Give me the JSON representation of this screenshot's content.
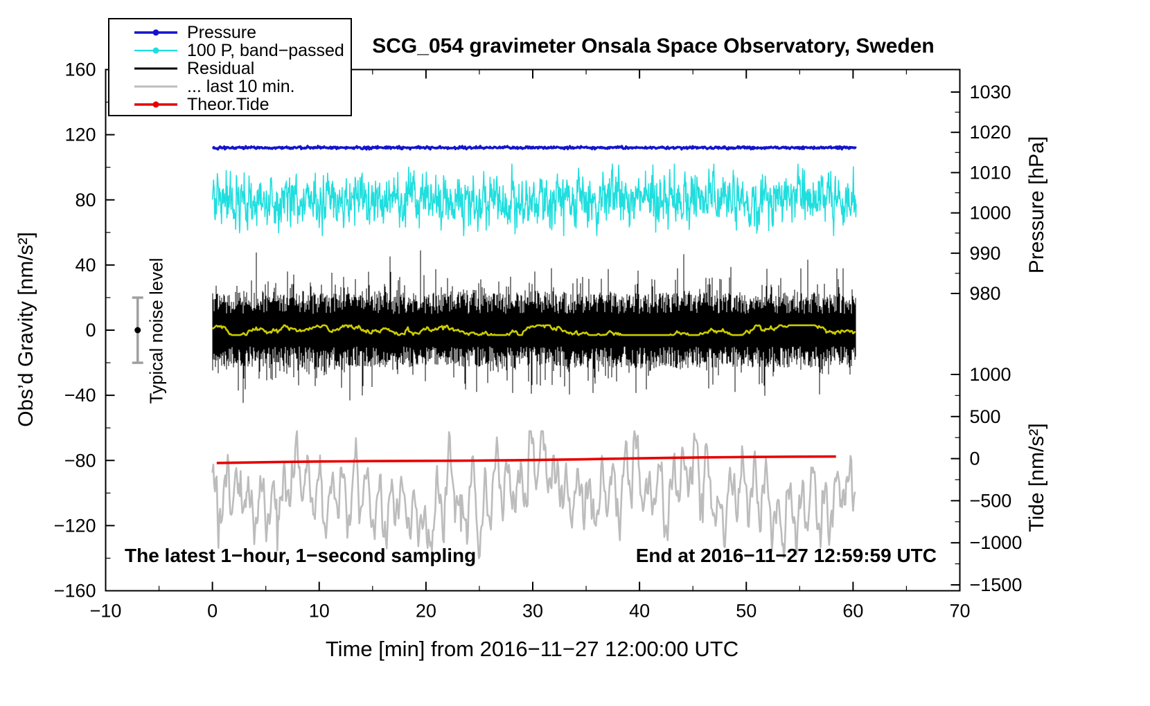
{
  "title": "SCG_054 gravimeter Onsala Space Observatory, Sweden",
  "annotations": {
    "sampling_note": "The latest 1−hour, 1−second sampling",
    "end_time": "End at 2016−11−27 12:59:59 UTC",
    "noise_label": "Typical noise level"
  },
  "legend": [
    {
      "label": "Pressure",
      "color": "#1414cc",
      "width": 3.4,
      "dot": true
    },
    {
      "label": "100 P, band−passed",
      "color": "#20dede",
      "width": 2.2,
      "dot": true
    },
    {
      "label": "Residual",
      "color": "#000000",
      "width": 3.0,
      "dot": false
    },
    {
      "label": "... last 10 min.",
      "color": "#bcbcbc",
      "width": 3.0,
      "dot": false
    },
    {
      "label": "Theor.Tide",
      "color": "#e60000",
      "width": 3.4,
      "dot": true
    }
  ],
  "axes": {
    "x": {
      "label": "Time [min] from 2016−11−27 12:00:00 UTC",
      "min": -10,
      "max": 70,
      "major_ticks": [
        -10,
        0,
        10,
        20,
        30,
        40,
        50,
        60,
        70
      ],
      "minor_step": 5
    },
    "y_left": {
      "label": "Obs’d Gravity [nm/s²]",
      "min": -160,
      "max": 160,
      "major_ticks": [
        -160,
        -120,
        -80,
        -40,
        0,
        40,
        80,
        120,
        160
      ],
      "minor_step": 20
    },
    "y_right_pressure": {
      "label": "Pressure [hPa]",
      "major_ticks": [
        1030,
        1020,
        1010,
        1000,
        990,
        980
      ],
      "minor_step": 5
    },
    "y_right_tide": {
      "label": "Tide [nm/s²]",
      "major_ticks": [
        1000,
        500,
        0,
        -500,
        -1000,
        -1500
      ],
      "minor_step": 250
    }
  },
  "chart_data": {
    "type": "line",
    "x_unit": "min",
    "x_range": [
      0,
      60.3
    ],
    "grid": false,
    "legend_position": "top-left",
    "series": [
      {
        "name": "Pressure",
        "color": "#1414cc",
        "style": "flat-noisy",
        "level_gravity_axis": 112,
        "value_hpa": 1015.7,
        "noise_amp": 0.4,
        "line_width": 3.4
      },
      {
        "name": "100 P, band-passed",
        "color": "#20dede",
        "style": "band-passed-noise",
        "center": 80,
        "typical_amp": 10,
        "max_amp": 22,
        "line_width": 1.6
      },
      {
        "name": "Residual",
        "color": "#000000",
        "style": "dense-noise",
        "center": 0,
        "typical_half_range": 25,
        "max_half_range": 49,
        "line_width": 1
      },
      {
        "name": "Residual smoothed",
        "color": "#cccc00",
        "style": "smooth-noise",
        "center": 0,
        "amp": 3,
        "line_width": 2.6
      },
      {
        "name": "... last 10 min.",
        "color": "#bcbcbc",
        "style": "oscillation",
        "center": -101,
        "amp": 20,
        "min": -140,
        "max": -62,
        "period_min": 1.1,
        "line_width": 2.6
      },
      {
        "name": "Theor.Tide",
        "color": "#e60000",
        "style": "trend",
        "start_value": -81.6,
        "end_value": -77.4,
        "line_width": 3.6
      }
    ],
    "noise_marker": {
      "x": -7,
      "center": 0,
      "half_range": 20,
      "bar_color": "#a0a0a0",
      "dot_color": "#000000"
    }
  }
}
